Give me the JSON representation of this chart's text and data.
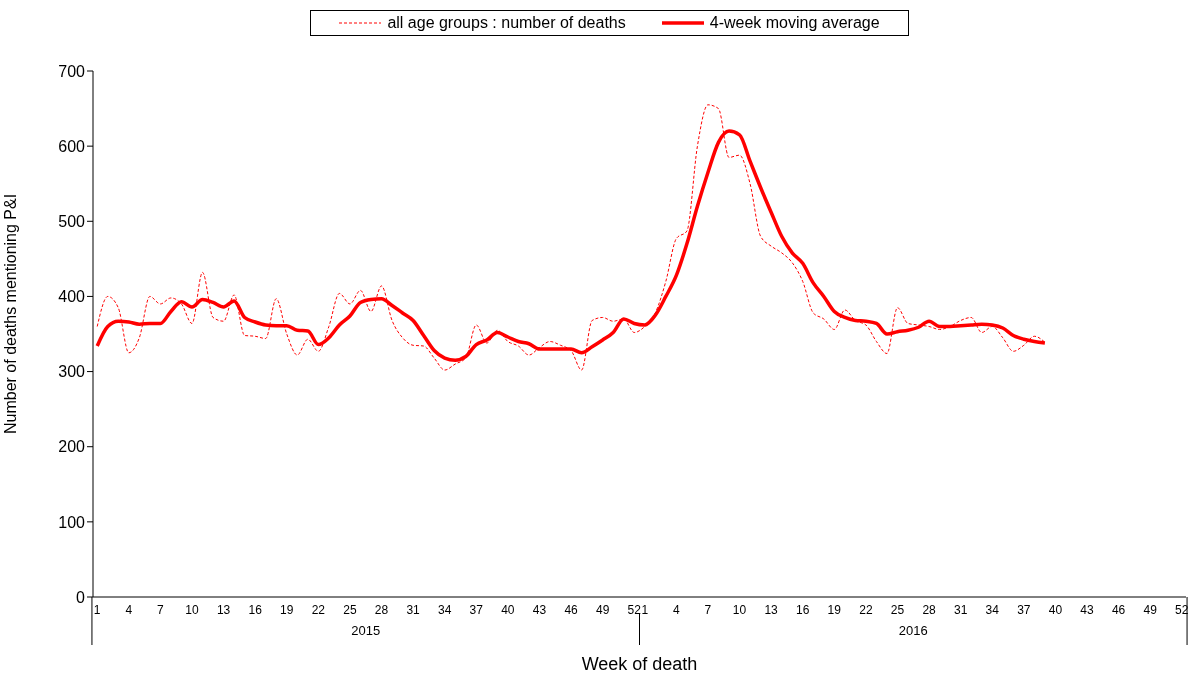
{
  "chart_data": {
    "type": "line",
    "xlabel": "Week of death",
    "ylabel": "Number of deaths mentioning P&I",
    "categories": [
      "1",
      null,
      null,
      "4",
      null,
      null,
      "7",
      null,
      null,
      "10",
      null,
      null,
      "13",
      null,
      null,
      "16",
      null,
      null,
      "19",
      null,
      null,
      "22",
      null,
      null,
      "25",
      null,
      null,
      "28",
      null,
      null,
      "31",
      null,
      null,
      "34",
      null,
      null,
      "37",
      null,
      null,
      "40",
      null,
      null,
      "43",
      null,
      null,
      "46",
      null,
      null,
      "49",
      null,
      null,
      "52",
      "1",
      null,
      null,
      "4",
      null,
      null,
      "7",
      null,
      null,
      "10",
      null,
      null,
      "13",
      null,
      null,
      "16",
      null,
      null,
      "19",
      null,
      null,
      "22",
      null,
      null,
      "25",
      null,
      null,
      "28",
      null,
      null,
      "31",
      null,
      null,
      "34",
      null,
      null,
      "37",
      null,
      null,
      "40",
      null,
      null,
      "43",
      null,
      null,
      "46",
      null,
      null,
      "49",
      null,
      null,
      "52"
    ],
    "series": [
      {
        "name": "all age groups : number of deaths",
        "color": "#ff0000",
        "line_style": "dashed",
        "values": [
          360,
          400,
          385,
          325,
          345,
          400,
          390,
          398,
          390,
          364,
          432,
          372,
          367,
          402,
          348,
          347,
          344,
          397,
          350,
          322,
          343,
          327,
          360,
          404,
          390,
          408,
          380,
          414,
          368,
          345,
          335,
          334,
          318,
          302,
          310,
          318,
          362,
          338,
          355,
          340,
          334,
          322,
          332,
          340,
          335,
          328,
          302,
          368,
          372,
          367,
          370,
          352,
          360,
          378,
          420,
          477,
          487,
          600,
          655,
          650,
          585,
          588,
          550,
          480,
          467,
          458,
          445,
          420,
          378,
          370,
          356,
          382,
          368,
          362,
          340,
          324,
          385,
          364,
          362,
          360,
          356,
          360,
          368,
          372,
          352,
          360,
          345,
          327,
          335,
          347,
          339,
          null,
          null,
          null,
          null,
          null,
          null,
          null,
          null,
          null,
          null,
          null,
          null,
          null
        ]
      },
      {
        "name": "4-week moving average",
        "color": "#ff0000",
        "line_style": "solid",
        "values": [
          334,
          360,
          367,
          366,
          363,
          364,
          364,
          380,
          393,
          386,
          396,
          392,
          386,
          394,
          372,
          366,
          362,
          361,
          361,
          355,
          354,
          336,
          345,
          362,
          374,
          392,
          396,
          397,
          388,
          378,
          368,
          348,
          328,
          318,
          315,
          320,
          336,
          342,
          352,
          346,
          340,
          337,
          330,
          330,
          330,
          330,
          325,
          333,
          342,
          352,
          370,
          364,
          362,
          375,
          400,
          428,
          470,
          520,
          565,
          605,
          620,
          615,
          580,
          545,
          512,
          480,
          458,
          444,
          418,
          400,
          380,
          372,
          368,
          367,
          364,
          350,
          353,
          355,
          359,
          367,
          360,
          360,
          361,
          362,
          363,
          362,
          358,
          348,
          343,
          340,
          338,
          null,
          null,
          null,
          null,
          null,
          null,
          null,
          null,
          null,
          null,
          null,
          null,
          null
        ]
      }
    ],
    "ylim": [
      0,
      700
    ],
    "yticks": [
      0,
      100,
      200,
      300,
      400,
      500,
      600,
      700
    ],
    "annotations": [
      "2015",
      "2016"
    ],
    "legend": "top",
    "marker": "none",
    "grid": false
  }
}
